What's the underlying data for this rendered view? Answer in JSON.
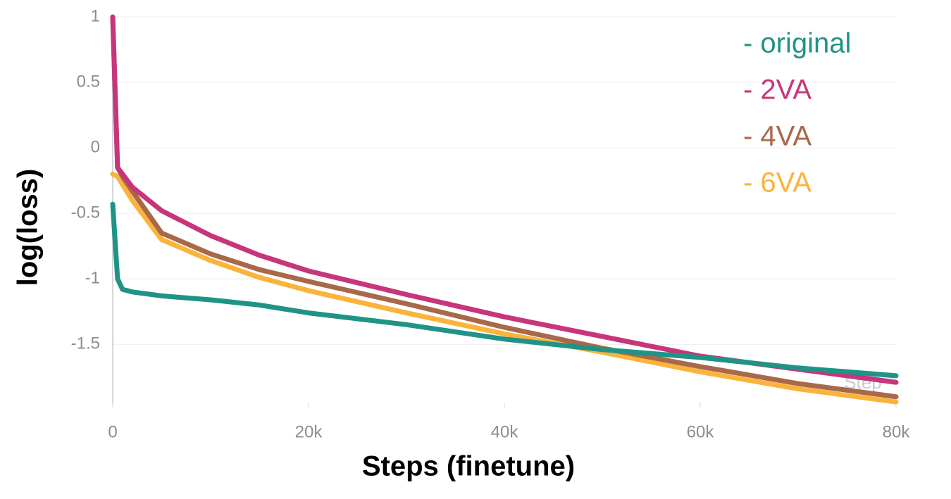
{
  "chart_data": {
    "type": "line",
    "xlabel": "Steps (finetune)",
    "ylabel": "log(loss)",
    "annotation": "Step",
    "xlim": [
      0,
      80000
    ],
    "ylim": [
      -1.95,
      1
    ],
    "xticks": [
      0,
      {
        "value": 20000,
        "label": "20k"
      },
      {
        "value": 40000,
        "label": "40k"
      },
      {
        "value": 60000,
        "label": "60k"
      },
      {
        "value": 80000,
        "label": "80k"
      }
    ],
    "yticks": [
      1,
      0.5,
      0,
      -0.5,
      -1,
      -1.5
    ],
    "grid": true,
    "legend": "upper right",
    "x": [
      0,
      500,
      1000,
      2000,
      5000,
      10000,
      15000,
      20000,
      30000,
      40000,
      50000,
      60000,
      70000,
      75000,
      80000
    ],
    "series": [
      {
        "name": "- original",
        "color": "#1f9486",
        "values": [
          -0.43,
          -1.0,
          -1.08,
          -1.1,
          -1.13,
          -1.16,
          -1.2,
          -1.26,
          -1.35,
          -1.46,
          -1.54,
          -1.6,
          -1.68,
          -1.71,
          -1.74
        ]
      },
      {
        "name": "- 2VA",
        "color": "#c7357a",
        "values": [
          1,
          -0.15,
          -0.2,
          -0.3,
          -0.48,
          -0.67,
          -0.82,
          -0.94,
          -1.12,
          -1.29,
          -1.44,
          -1.59,
          -1.69,
          -1.74,
          -1.79
        ]
      },
      {
        "name": "- 4VA",
        "color": "#a8694a",
        "values": [
          1,
          -0.15,
          -0.22,
          -0.33,
          -0.65,
          -0.81,
          -0.93,
          -1.02,
          -1.19,
          -1.37,
          -1.53,
          -1.67,
          -1.8,
          -1.85,
          -1.9
        ]
      },
      {
        "name": "- 6VA",
        "color": "#fbb33c",
        "values": [
          -0.2,
          -0.22,
          -0.28,
          -0.4,
          -0.7,
          -0.86,
          -0.99,
          -1.09,
          -1.26,
          -1.42,
          -1.56,
          -1.71,
          -1.84,
          -1.89,
          -1.94
        ]
      }
    ]
  }
}
